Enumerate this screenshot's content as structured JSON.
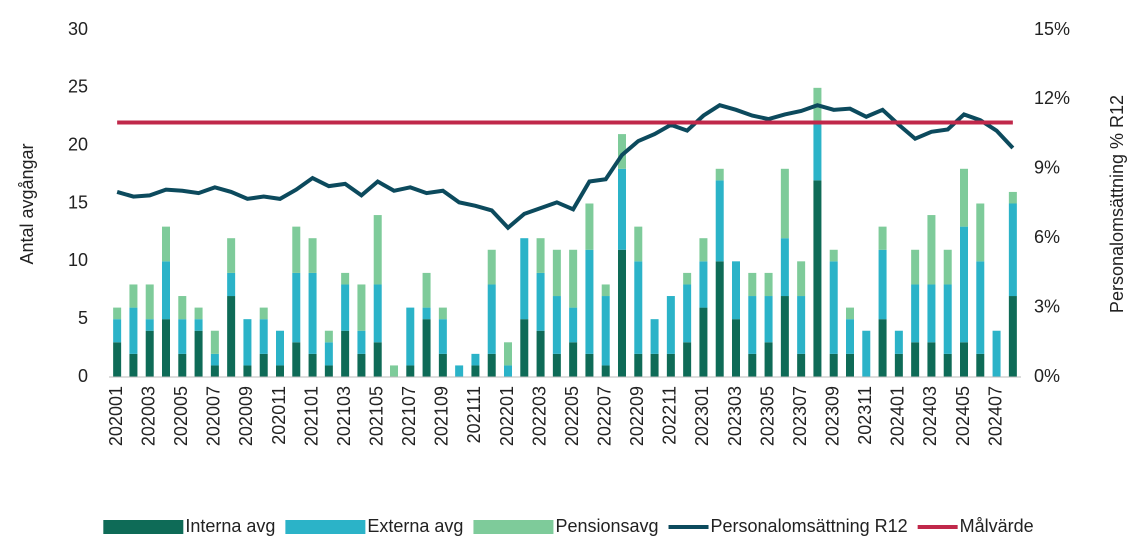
{
  "chart_data": {
    "type": "bar",
    "stacked": true,
    "categories": [
      "202001",
      null,
      "202003",
      null,
      "202005",
      null,
      "202007",
      null,
      "202009",
      null,
      "202011",
      null,
      "202101",
      null,
      "202103",
      null,
      "202105",
      null,
      "202107",
      null,
      "202109",
      null,
      "202111",
      null,
      "202201",
      null,
      "202203",
      null,
      "202205",
      null,
      "202207",
      null,
      "202209",
      null,
      "202211",
      null,
      "202301",
      null,
      "202303",
      null,
      "202305",
      null,
      "202307",
      null,
      "202309",
      null,
      "202311",
      null,
      "202401",
      null,
      "202403",
      null,
      "202405",
      null,
      "202407",
      null
    ],
    "ylabel": "Antal avgångar",
    "y2label": "Personalomsättning % R12",
    "ylim": [
      0,
      30
    ],
    "yticks": [
      0,
      5,
      10,
      15,
      20,
      25,
      30
    ],
    "y2lim": [
      0,
      15
    ],
    "y2ticks": [
      {
        "value": 0,
        "label": "0%"
      },
      {
        "value": 3,
        "label": "3%"
      },
      {
        "value": 6,
        "label": "6%"
      },
      {
        "value": 9,
        "label": "9%"
      },
      {
        "value": 12,
        "label": "12%"
      },
      {
        "value": 15,
        "label": "15%"
      }
    ],
    "series": [
      {
        "name": "Interna avg",
        "type": "bar",
        "color": "#0e6b57",
        "values": [
          3,
          2,
          4,
          5,
          2,
          4,
          1,
          7,
          1,
          2,
          1,
          3,
          2,
          1,
          4,
          2,
          3,
          0,
          1,
          5,
          2,
          0,
          1,
          2,
          0,
          5,
          4,
          2,
          3,
          2,
          1,
          11,
          2,
          2,
          2,
          3,
          6,
          10,
          5,
          2,
          3,
          7,
          2,
          17,
          2,
          2,
          0,
          5,
          2,
          3,
          3,
          2,
          3,
          2,
          0,
          7
        ]
      },
      {
        "name": "Externa avg",
        "type": "bar",
        "color": "#2bb3c8",
        "values": [
          2,
          4,
          1,
          5,
          3,
          1,
          1,
          2,
          4,
          3,
          3,
          6,
          7,
          2,
          4,
          2,
          5,
          0,
          5,
          1,
          3,
          1,
          1,
          6,
          1,
          7,
          5,
          5,
          3,
          9,
          6,
          7,
          8,
          3,
          5,
          5,
          4,
          7,
          5,
          5,
          4,
          5,
          5,
          5,
          8,
          3,
          4,
          6,
          2,
          5,
          5,
          6,
          10,
          8,
          4,
          8
        ]
      },
      {
        "name": "Pensionsavg",
        "type": "bar",
        "color": "#7ecb9a",
        "values": [
          1,
          2,
          3,
          3,
          2,
          1,
          2,
          3,
          0,
          1,
          0,
          4,
          3,
          1,
          1,
          4,
          6,
          1,
          0,
          3,
          1,
          0,
          0,
          3,
          2,
          0,
          3,
          4,
          5,
          4,
          1,
          3,
          3,
          0,
          0,
          1,
          2,
          1,
          0,
          2,
          2,
          6,
          3,
          3,
          1,
          1,
          0,
          2,
          0,
          3,
          6,
          3,
          5,
          5,
          0,
          1
        ]
      },
      {
        "name": "Personalomsättning R12",
        "type": "line",
        "axis": "y2",
        "color": "#0c4a5d",
        "values": [
          8.0,
          7.8,
          7.85,
          8.1,
          8.05,
          7.95,
          8.2,
          8.0,
          7.7,
          7.8,
          7.7,
          8.1,
          8.6,
          8.25,
          8.35,
          7.85,
          8.45,
          8.05,
          8.2,
          7.95,
          8.05,
          7.55,
          7.4,
          7.2,
          6.45,
          7.05,
          7.3,
          7.55,
          7.25,
          8.45,
          8.55,
          9.6,
          10.2,
          10.5,
          10.9,
          10.65,
          11.3,
          11.75,
          11.55,
          11.3,
          11.15,
          11.35,
          11.5,
          11.75,
          11.55,
          11.6,
          11.25,
          11.55,
          10.9,
          10.3,
          10.6,
          10.7,
          11.35,
          11.1,
          10.65,
          9.9
        ]
      },
      {
        "name": "Målvärde",
        "type": "line",
        "axis": "y2",
        "color": "#c0284a",
        "values": [
          11,
          11,
          11,
          11,
          11,
          11,
          11,
          11,
          11,
          11,
          11,
          11,
          11,
          11,
          11,
          11,
          11,
          11,
          11,
          11,
          11,
          11,
          11,
          11,
          11,
          11,
          11,
          11,
          11,
          11,
          11,
          11,
          11,
          11,
          11,
          11,
          11,
          11,
          11,
          11,
          11,
          11,
          11,
          11,
          11,
          11,
          11,
          11,
          11,
          11,
          11,
          11,
          11,
          11,
          11,
          11
        ]
      }
    ],
    "legend": "bottom"
  }
}
